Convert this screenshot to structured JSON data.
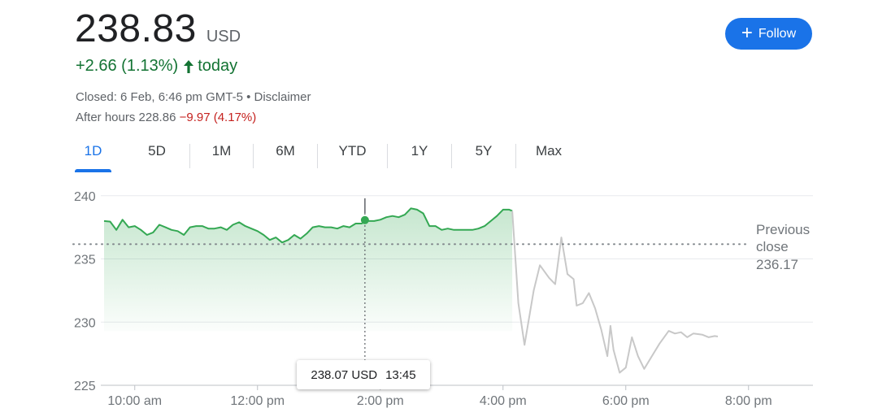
{
  "header": {
    "price": "238.83",
    "currency": "USD",
    "change": "+2.66 (1.13%)",
    "change_arrow": "arrow-up-icon",
    "change_suffix": "today",
    "closed_text": "Closed: 6 Feb, 6:46 pm GMT-5 • Disclaimer",
    "after_hours_label": "After hours 228.86",
    "after_hours_change": "−9.97 (4.17%)"
  },
  "follow_button": {
    "label": "Follow",
    "icon": "plus-icon"
  },
  "tabs": [
    {
      "label": "1D",
      "active": true
    },
    {
      "label": "5D",
      "active": false
    },
    {
      "label": "1M",
      "active": false
    },
    {
      "label": "6M",
      "active": false
    },
    {
      "label": "YTD",
      "active": false
    },
    {
      "label": "1Y",
      "active": false
    },
    {
      "label": "5Y",
      "active": false
    },
    {
      "label": "Max",
      "active": false
    }
  ],
  "tooltip": {
    "value": "238.07 USD",
    "time": "13:45"
  },
  "colors": {
    "accent": "#1a73e8",
    "positive": "#137333",
    "negative": "#c5221f",
    "line_regular": "#34a853",
    "line_after_hours": "#c8c8c8"
  },
  "chart_data": {
    "type": "line",
    "x_unit": "time of day (hours)",
    "xlim": [
      9.5,
      20.5
    ],
    "ylim": [
      225,
      240.5
    ],
    "x_ticks": [
      {
        "value": 10,
        "label": "10:00 am"
      },
      {
        "value": 12,
        "label": "12:00 pm"
      },
      {
        "value": 14,
        "label": "2:00 pm"
      },
      {
        "value": 16,
        "label": "4:00 pm"
      },
      {
        "value": 18,
        "label": "6:00 pm"
      },
      {
        "value": 20,
        "label": "8:00 pm"
      }
    ],
    "y_ticks": [
      {
        "value": 225,
        "label": "225"
      },
      {
        "value": 230,
        "label": "230"
      },
      {
        "value": 235,
        "label": "235"
      },
      {
        "value": 240,
        "label": "240"
      }
    ],
    "grid": true,
    "previous_close": {
      "value": 236.17,
      "label_line1": "Previous",
      "label_line2": "close",
      "value_label": "236.17"
    },
    "marker": {
      "x": 13.75,
      "y": 238.07
    },
    "series": [
      {
        "segment": "regular",
        "points": [
          [
            9.5,
            238.0
          ],
          [
            9.6,
            237.95
          ],
          [
            9.7,
            237.3
          ],
          [
            9.8,
            238.1
          ],
          [
            9.9,
            237.5
          ],
          [
            10.0,
            237.6
          ],
          [
            10.1,
            237.3
          ],
          [
            10.2,
            236.9
          ],
          [
            10.3,
            237.1
          ],
          [
            10.4,
            237.7
          ],
          [
            10.5,
            237.5
          ],
          [
            10.6,
            237.3
          ],
          [
            10.7,
            237.2
          ],
          [
            10.8,
            236.9
          ],
          [
            10.9,
            237.5
          ],
          [
            11.0,
            237.6
          ],
          [
            11.1,
            237.6
          ],
          [
            11.2,
            237.4
          ],
          [
            11.3,
            237.4
          ],
          [
            11.4,
            237.5
          ],
          [
            11.5,
            237.3
          ],
          [
            11.6,
            237.7
          ],
          [
            11.7,
            237.9
          ],
          [
            11.8,
            237.6
          ],
          [
            11.9,
            237.4
          ],
          [
            12.0,
            237.2
          ],
          [
            12.1,
            236.9
          ],
          [
            12.2,
            236.5
          ],
          [
            12.3,
            236.7
          ],
          [
            12.4,
            236.3
          ],
          [
            12.5,
            236.5
          ],
          [
            12.6,
            236.9
          ],
          [
            12.7,
            236.6
          ],
          [
            12.8,
            237.0
          ],
          [
            12.9,
            237.5
          ],
          [
            13.0,
            237.6
          ],
          [
            13.1,
            237.5
          ],
          [
            13.2,
            237.5
          ],
          [
            13.3,
            237.4
          ],
          [
            13.4,
            237.6
          ],
          [
            13.5,
            237.5
          ],
          [
            13.6,
            237.8
          ],
          [
            13.7,
            237.8
          ],
          [
            13.75,
            238.07
          ],
          [
            13.8,
            238.0
          ],
          [
            13.9,
            238.0
          ],
          [
            14.0,
            238.1
          ],
          [
            14.1,
            238.3
          ],
          [
            14.2,
            238.4
          ],
          [
            14.3,
            238.3
          ],
          [
            14.4,
            238.5
          ],
          [
            14.5,
            239.0
          ],
          [
            14.6,
            238.9
          ],
          [
            14.7,
            238.6
          ],
          [
            14.8,
            237.6
          ],
          [
            14.9,
            237.6
          ],
          [
            15.0,
            237.3
          ],
          [
            15.1,
            237.4
          ],
          [
            15.2,
            237.3
          ],
          [
            15.3,
            237.3
          ],
          [
            15.4,
            237.3
          ],
          [
            15.5,
            237.3
          ],
          [
            15.6,
            237.4
          ],
          [
            15.7,
            237.6
          ],
          [
            15.8,
            238.0
          ],
          [
            15.9,
            238.4
          ],
          [
            16.0,
            238.9
          ],
          [
            16.1,
            238.9
          ],
          [
            16.15,
            238.8
          ]
        ]
      },
      {
        "segment": "after-hours",
        "points": [
          [
            16.15,
            238.8
          ],
          [
            16.25,
            231.5
          ],
          [
            16.35,
            228.2
          ],
          [
            16.5,
            232.5
          ],
          [
            16.6,
            234.5
          ],
          [
            16.75,
            233.5
          ],
          [
            16.85,
            233.0
          ],
          [
            16.95,
            236.7
          ],
          [
            17.05,
            233.8
          ],
          [
            17.15,
            233.4
          ],
          [
            17.2,
            231.3
          ],
          [
            17.3,
            231.5
          ],
          [
            17.4,
            232.3
          ],
          [
            17.5,
            231.1
          ],
          [
            17.6,
            229.4
          ],
          [
            17.7,
            227.3
          ],
          [
            17.75,
            229.7
          ],
          [
            17.8,
            227.8
          ],
          [
            17.9,
            226.0
          ],
          [
            18.0,
            226.4
          ],
          [
            18.1,
            228.8
          ],
          [
            18.2,
            227.3
          ],
          [
            18.3,
            226.3
          ],
          [
            18.45,
            227.5
          ],
          [
            18.55,
            228.3
          ],
          [
            18.7,
            229.3
          ],
          [
            18.8,
            229.1
          ],
          [
            18.9,
            229.2
          ],
          [
            19.0,
            228.8
          ],
          [
            19.1,
            229.1
          ],
          [
            19.25,
            229.0
          ],
          [
            19.35,
            228.8
          ],
          [
            19.45,
            228.9
          ],
          [
            19.5,
            228.86
          ]
        ]
      }
    ]
  }
}
